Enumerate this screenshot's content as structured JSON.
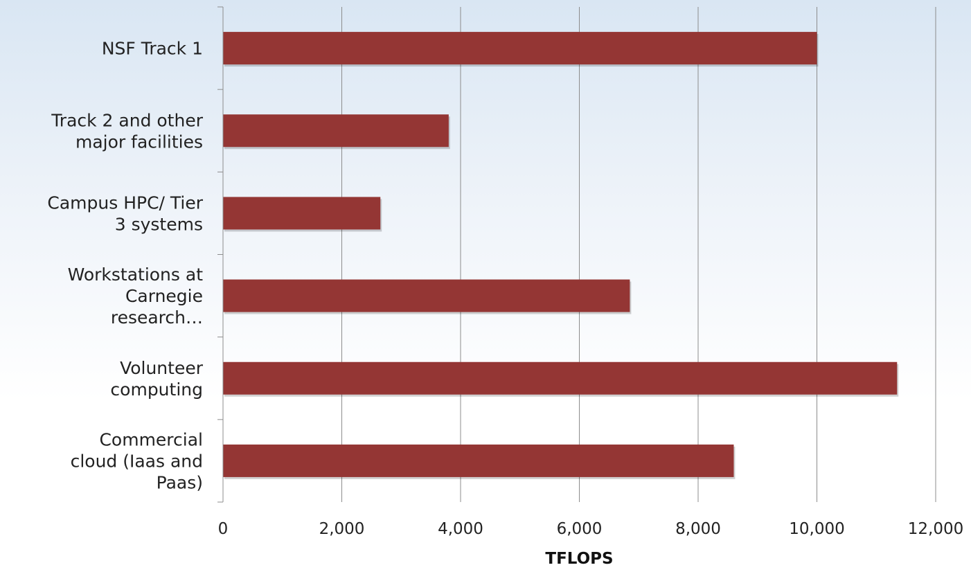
{
  "chart_data": {
    "type": "bar",
    "orientation": "horizontal",
    "categories": [
      "NSF Track 1",
      "Track 2 and other major facilities",
      "Campus HPC/ Tier 3 systems",
      "Workstations at Carnegie research…",
      "Volunteer computing",
      "Commercial cloud (Iaas and Paas)"
    ],
    "category_lines": [
      [
        "NSF Track 1"
      ],
      [
        "Track 2 and other",
        "major facilities"
      ],
      [
        "Campus HPC/ Tier",
        "3 systems"
      ],
      [
        "Workstations at",
        "Carnegie",
        "research…"
      ],
      [
        "Volunteer",
        "computing"
      ],
      [
        "Commercial",
        "cloud (Iaas and",
        "Paas)"
      ]
    ],
    "values": [
      10000,
      3800,
      2650,
      6850,
      11350,
      8600
    ],
    "xlabel": "TFLOPS",
    "ylabel": "",
    "xlim": [
      0,
      12000
    ],
    "xticks": [
      0,
      2000,
      4000,
      6000,
      8000,
      10000,
      12000
    ],
    "xtick_labels": [
      "0",
      "2,000",
      "4,000",
      "6,000",
      "8,000",
      "10,000",
      "12,000"
    ],
    "grid": "vertical",
    "legend": "none",
    "colors": {
      "bar": "#943634",
      "grid": "#8c8c8c",
      "axis": "#8c8c8c"
    }
  }
}
